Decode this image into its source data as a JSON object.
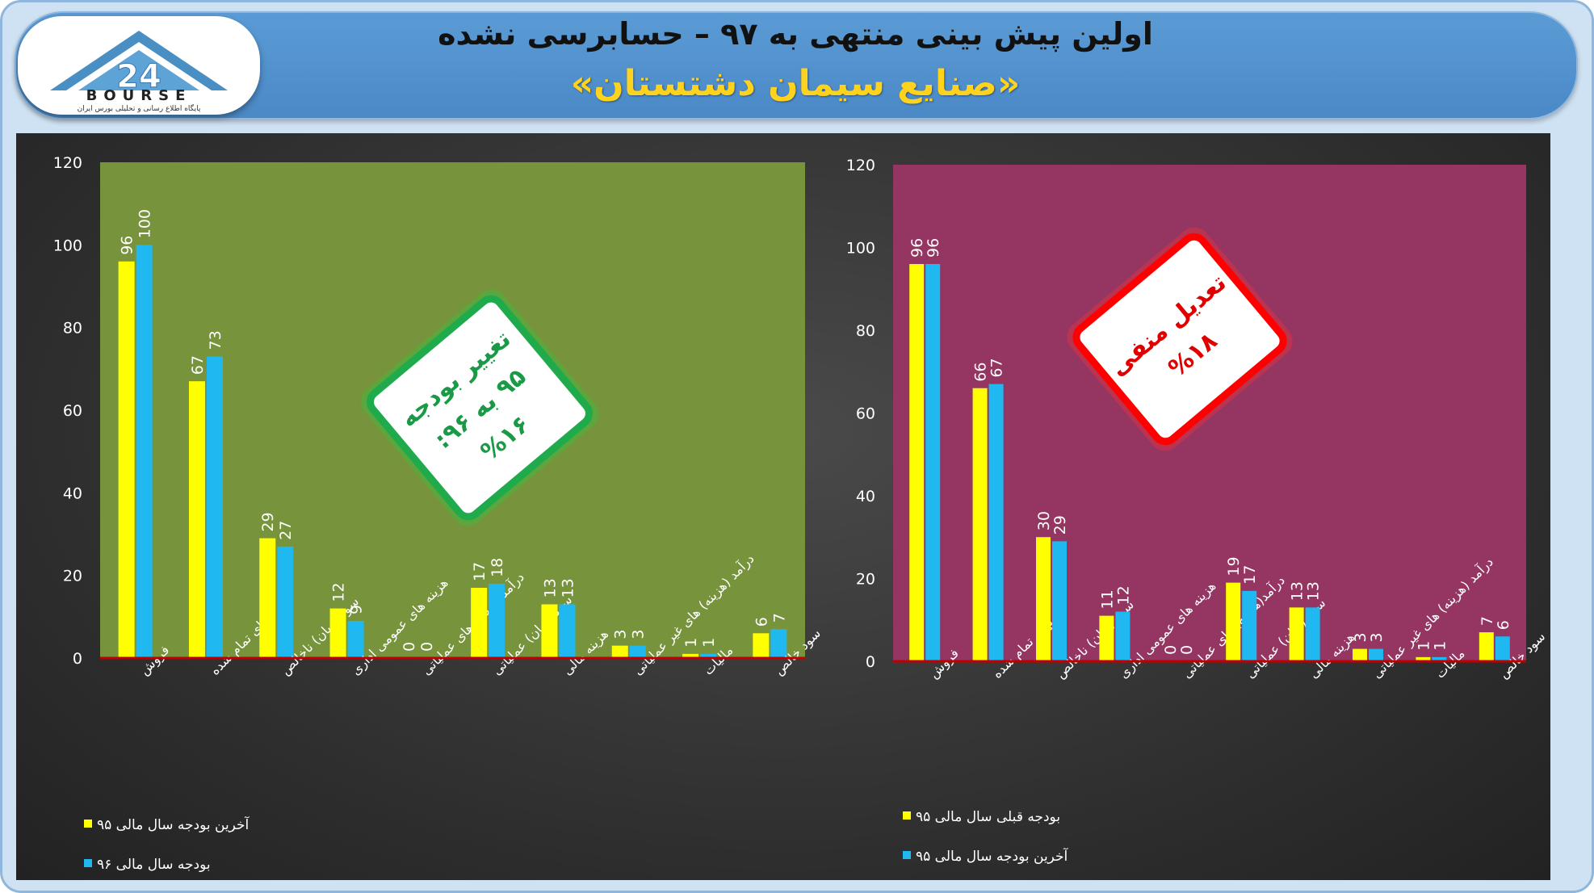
{
  "header": {
    "title": "اولین پیش بینی منتهی به ۹۷ – حسابرسی نشده",
    "subtitle": "«صنایع سیمان دشتستان»"
  },
  "logo": {
    "text": "BOURSE",
    "tagline": "پایگاه اطلاع رسانی و تحلیلی بورس ایران"
  },
  "colors": {
    "yellow": "#ffff00",
    "cyan": "#1fb8f0",
    "left_plot_bg": "#77933c",
    "right_plot_bg": "#953561",
    "badge_left_border": "#1faa4c",
    "badge_right_border": "#ff0000"
  },
  "badges": {
    "left": [
      "تغییر بودجه",
      "۹۵ به ۹۶:",
      "%۱۶"
    ],
    "right": [
      "تعدیل منفی",
      "%۱۸"
    ]
  },
  "chart_data": [
    {
      "type": "bar",
      "categories": [
        "فروش",
        "بهای تمام شده",
        "سود (زیان) ناخالص",
        "هزینه های عمومی اداری",
        "درآمد(هزینه) های عملیاتی",
        "سود (زیان) عملیاتی",
        "هزینه مالی",
        "درآمد (هزینه) های غیر عملیاتی",
        "مالیات",
        "سود خالص"
      ],
      "series": [
        {
          "name": "آخرین بودجه سال مالی ۹۵",
          "values": [
            96,
            67,
            29,
            12,
            0,
            17,
            13,
            3,
            1,
            6
          ]
        },
        {
          "name": "بودجه سال مالی ۹۶",
          "values": [
            100,
            73,
            27,
            9,
            0,
            18,
            13,
            3,
            1,
            7
          ]
        }
      ],
      "ylim": [
        0,
        120
      ],
      "yticks": [
        "0",
        "20",
        "40",
        "60",
        "80",
        "100",
        "120"
      ],
      "grid": false,
      "legend": "bottom-left"
    },
    {
      "type": "bar",
      "categories": [
        "فروش",
        "بهای تمام شده",
        "سود (زیان) ناخالص",
        "هزینه های عمومی اداری",
        "درآمد(هزینه) های عملیاتی",
        "سود (زیان) عملیاتی",
        "هزینه مالی",
        "درآمد (هزینه) های غیر عملیاتی",
        "مالیات",
        "سود خالص"
      ],
      "series": [
        {
          "name": "بودجه قبلی سال مالی ۹۵",
          "values": [
            96,
            66,
            30,
            11,
            0,
            19,
            13,
            3,
            1,
            7
          ]
        },
        {
          "name": "آخرین بودجه سال مالی ۹۵",
          "values": [
            96,
            67,
            29,
            12,
            0,
            17,
            13,
            3,
            1,
            6
          ]
        }
      ],
      "ylim": [
        0,
        120
      ],
      "yticks": [
        "0",
        "20",
        "40",
        "60",
        "80",
        "100",
        "120"
      ],
      "grid": false,
      "legend": "bottom-left"
    }
  ]
}
